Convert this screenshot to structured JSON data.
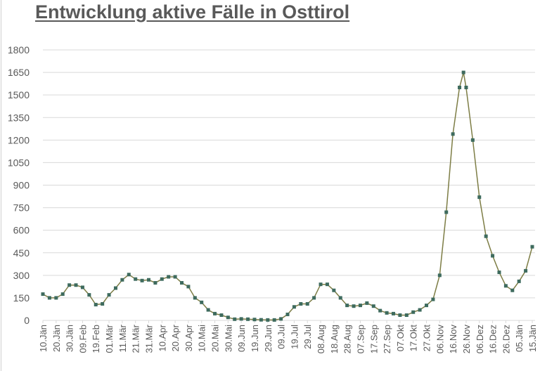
{
  "chart_data": {
    "type": "line",
    "title": "Entwicklung aktive Fälle in Osttirol",
    "xlabel": "",
    "ylabel": "",
    "ylim": [
      0,
      1800
    ],
    "yticks": [
      "0",
      "150",
      "300",
      "450",
      "600",
      "750",
      "900",
      "1050",
      "1200",
      "1350",
      "1500",
      "1650",
      "1800"
    ],
    "xticks": [
      "10.Jän",
      "20.Jän",
      "30.Jän",
      "09.Feb",
      "19.Feb",
      "01.Mär",
      "11.Mär",
      "21.Mär",
      "31.Mär",
      "10.Apr",
      "20.Apr",
      "30.Apr",
      "10.Mai",
      "20.Mai",
      "30.Mai",
      "09.Jun",
      "19.Jun",
      "29.Jun",
      "09.Jul",
      "19.Jul",
      "29.Jul",
      "08.Aug",
      "18.Aug",
      "28.Aug",
      "07.Sep",
      "17.Sep",
      "27.Sep",
      "07.Okt",
      "17.Okt",
      "27.Okt",
      "06.Nov",
      "16.Nov",
      "26.Nov",
      "06.Dez",
      "16.Dez",
      "26.Dez",
      "05.Jän",
      "15.Jän"
    ],
    "grid": true,
    "legend": "none",
    "colors": {
      "marker": "#3e6b5e",
      "line": "#7d7d45",
      "grid": "#d9d9d9",
      "text": "#595959"
    },
    "x": [
      "10.Jän",
      "15.Jän",
      "20.Jän",
      "25.Jän",
      "30.Jän",
      "04.Feb",
      "09.Feb",
      "14.Feb",
      "19.Feb",
      "24.Feb",
      "01.Mär",
      "06.Mär",
      "11.Mär",
      "16.Mär",
      "21.Mär",
      "26.Mär",
      "31.Mär",
      "05.Apr",
      "10.Apr",
      "15.Apr",
      "20.Apr",
      "25.Apr",
      "30.Apr",
      "05.Mai",
      "10.Mai",
      "15.Mai",
      "20.Mai",
      "25.Mai",
      "30.Mai",
      "04.Jun",
      "09.Jun",
      "14.Jun",
      "19.Jun",
      "24.Jun",
      "29.Jun",
      "04.Jul",
      "09.Jul",
      "14.Jul",
      "19.Jul",
      "24.Jul",
      "29.Jul",
      "03.Aug",
      "08.Aug",
      "13.Aug",
      "18.Aug",
      "23.Aug",
      "28.Aug",
      "02.Sep",
      "07.Sep",
      "12.Sep",
      "17.Sep",
      "22.Sep",
      "27.Sep",
      "02.Okt",
      "07.Okt",
      "12.Okt",
      "17.Okt",
      "22.Okt",
      "27.Okt",
      "01.Nov",
      "06.Nov",
      "11.Nov",
      "16.Nov",
      "21.Nov",
      "24.Nov",
      "26.Nov",
      "01.Dez",
      "06.Dez",
      "11.Dez",
      "16.Dez",
      "21.Dez",
      "26.Dez",
      "31.Dez",
      "05.Jän",
      "10.Jän",
      "15.Jän"
    ],
    "y": [
      175,
      150,
      150,
      175,
      235,
      235,
      220,
      170,
      105,
      110,
      170,
      215,
      270,
      305,
      275,
      265,
      270,
      250,
      275,
      290,
      290,
      250,
      225,
      150,
      120,
      70,
      45,
      35,
      20,
      8,
      10,
      8,
      6,
      4,
      3,
      3,
      10,
      40,
      90,
      110,
      110,
      150,
      240,
      240,
      200,
      150,
      100,
      95,
      100,
      115,
      95,
      65,
      50,
      45,
      35,
      35,
      55,
      70,
      100,
      140,
      300,
      720,
      1240,
      1550,
      1650,
      1550,
      1200,
      820,
      560,
      430,
      320,
      230,
      200,
      260,
      330,
      490
    ]
  }
}
